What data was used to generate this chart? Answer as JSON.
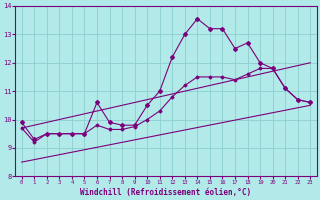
{
  "xlabel": "Windchill (Refroidissement éolien,°C)",
  "bg_color": "#b2eaea",
  "grid_color": "#8ecece",
  "line_color": "#7b007b",
  "xlim": [
    -0.5,
    23.5
  ],
  "ylim": [
    8,
    14
  ],
  "yticks": [
    8,
    9,
    10,
    11,
    12,
    13,
    14
  ],
  "xticks": [
    0,
    1,
    2,
    3,
    4,
    5,
    6,
    7,
    8,
    9,
    10,
    11,
    12,
    13,
    14,
    15,
    16,
    17,
    18,
    19,
    20,
    21,
    22,
    23
  ],
  "main_x": [
    0,
    1,
    2,
    3,
    4,
    5,
    6,
    7,
    8,
    9,
    10,
    11,
    12,
    13,
    14,
    15,
    16,
    17,
    18,
    19,
    20,
    21,
    22,
    23
  ],
  "main_y": [
    9.9,
    9.3,
    9.5,
    9.5,
    9.5,
    9.5,
    10.6,
    9.9,
    9.8,
    9.8,
    10.5,
    11.0,
    12.2,
    13.0,
    13.55,
    13.2,
    13.2,
    12.5,
    12.7,
    12.0,
    11.8,
    11.1,
    10.7,
    10.6
  ],
  "trend1_x": [
    0,
    23
  ],
  "trend1_y": [
    9.7,
    12.0
  ],
  "trend2_x": [
    0,
    23
  ],
  "trend2_y": [
    8.5,
    10.5
  ],
  "smooth_x": [
    0,
    1,
    2,
    3,
    4,
    5,
    6,
    7,
    8,
    9,
    10,
    11,
    12,
    13,
    14,
    15,
    16,
    17,
    18,
    19,
    20,
    21,
    22,
    23
  ],
  "smooth_y": [
    9.7,
    9.2,
    9.5,
    9.5,
    9.5,
    9.5,
    9.8,
    9.65,
    9.65,
    9.75,
    10.0,
    10.3,
    10.8,
    11.2,
    11.5,
    11.5,
    11.5,
    11.4,
    11.6,
    11.8,
    11.8,
    11.1,
    10.7,
    10.6
  ]
}
